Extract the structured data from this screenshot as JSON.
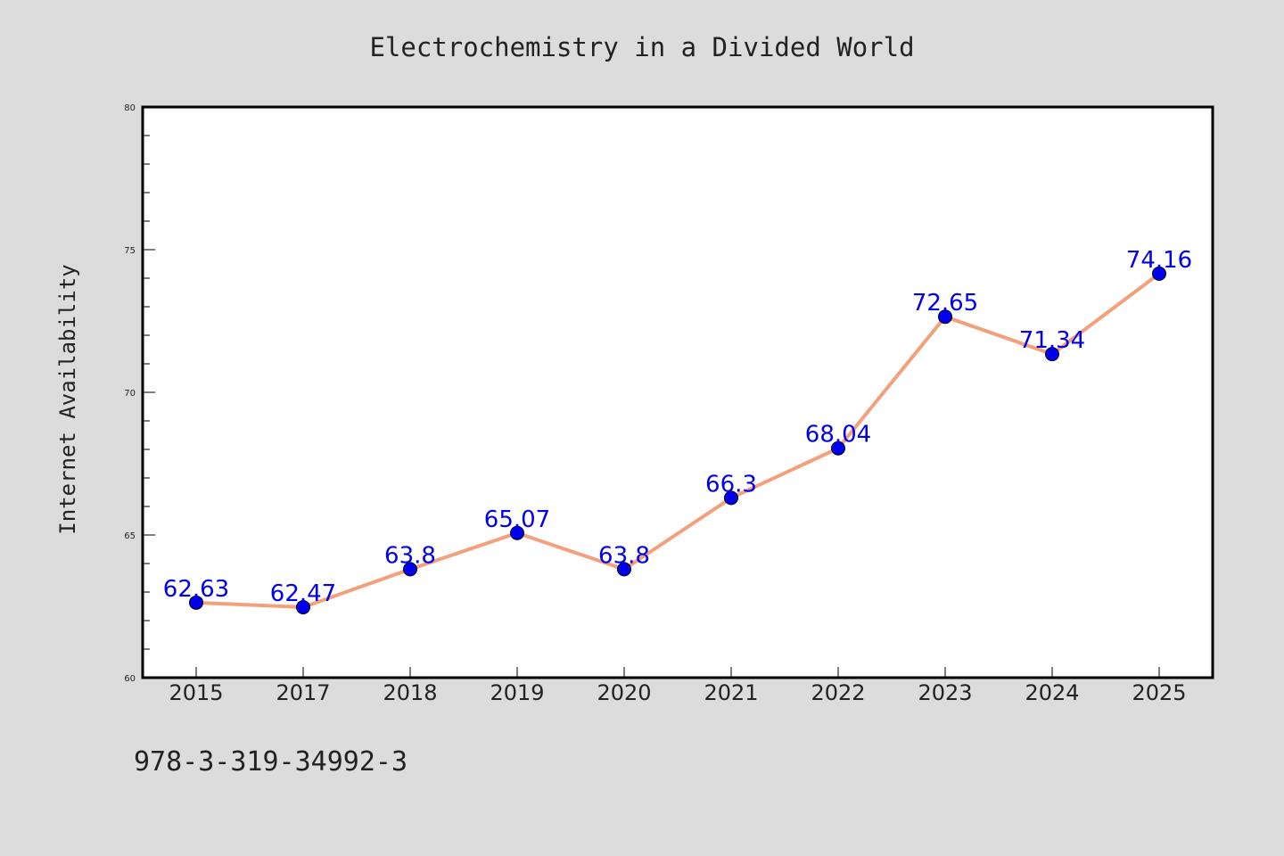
{
  "chart_data": {
    "type": "line",
    "title": "Electrochemistry in a Divided World",
    "xlabel": "",
    "ylabel": "Internet Availability",
    "categories": [
      "2015",
      "2017",
      "2018",
      "2019",
      "2020",
      "2021",
      "2022",
      "2023",
      "2024",
      "2025"
    ],
    "series": [
      {
        "values": [
          62.63,
          62.47,
          63.8,
          65.07,
          63.8,
          66.3,
          68.04,
          72.65,
          71.34,
          74.16
        ]
      }
    ],
    "data_labels": [
      "62.63",
      "62.47",
      "63.8",
      "65.07",
      "63.8",
      "66.3",
      "68.04",
      "72.65",
      "71.34",
      "74.16"
    ],
    "ylim": [
      60,
      80
    ],
    "yticks": [
      "60",
      "65",
      "70",
      "75",
      "80"
    ],
    "grid": false,
    "legend": "none",
    "colors": {
      "line": "#f4a07c",
      "marker": "#0000ee",
      "label": "#0000ee",
      "background": "#dcdcdc",
      "plot_area": "#ffffff"
    }
  },
  "footer": {
    "isbn": "978-3-319-34992-3"
  }
}
